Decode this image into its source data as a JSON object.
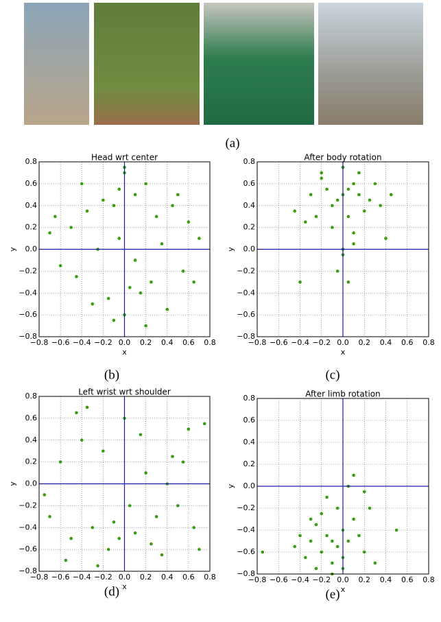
{
  "figure": {
    "captions": [
      "(a)",
      "(b)",
      "(c)",
      "(d)",
      "(e)"
    ]
  },
  "chart_data": [
    {
      "type": "scatter",
      "title": "Head wrt center",
      "x_label": "x",
      "y_label": "y",
      "color": "#3a9c10",
      "grid": true,
      "xlim": [
        -0.8,
        0.8
      ],
      "ylim": [
        -0.8,
        0.8
      ],
      "xticks": [
        {
          "value": -0.8,
          "label": "−0.8"
        },
        {
          "value": -0.6,
          "label": "−0.6"
        },
        {
          "value": -0.4,
          "label": "−0.4"
        },
        {
          "value": -0.2,
          "label": "−0.2"
        },
        {
          "value": 0,
          "label": "0.0"
        },
        0.2,
        0.4,
        0.6,
        0.8
      ],
      "yticks": [
        {
          "value": -0.8,
          "label": "−0.8"
        },
        {
          "value": -0.6,
          "label": "−0.6"
        },
        {
          "value": -0.4,
          "label": "−0.4"
        },
        {
          "value": -0.2,
          "label": "−0.2"
        },
        {
          "value": 0,
          "label": "0.0"
        },
        0.2,
        0.4,
        0.6,
        0.8
      ],
      "x": [
        -0.05,
        0.1,
        -0.2,
        0.2,
        0.0,
        -0.1,
        0.3,
        -0.35,
        0.45,
        -0.5,
        0.6,
        -0.65,
        0.05,
        -0.15,
        0.15,
        0.25,
        -0.3,
        0.4,
        -0.45,
        0.55,
        0.0,
        -0.05,
        0.1,
        -0.25,
        0.35,
        -0.6,
        0.7,
        -0.7,
        0.65,
        -0.4,
        0.5,
        0.2,
        -0.1,
        0.0
      ],
      "values": [
        0.55,
        0.5,
        0.45,
        0.6,
        0.7,
        0.4,
        0.3,
        0.35,
        0.4,
        0.2,
        0.25,
        0.3,
        -0.35,
        -0.45,
        -0.4,
        -0.3,
        -0.5,
        -0.55,
        -0.25,
        -0.2,
        -0.6,
        0.1,
        -0.1,
        0.0,
        0.05,
        -0.15,
        0.1,
        0.15,
        -0.3,
        0.6,
        0.5,
        -0.7,
        -0.65,
        0.75
      ]
    },
    {
      "type": "scatter",
      "title": "After body rotation",
      "x_label": "x",
      "y_label": "y",
      "color": "#3a9c10",
      "grid": true,
      "xlim": [
        -0.8,
        0.8
      ],
      "ylim": [
        -0.8,
        0.8
      ],
      "xticks": [
        {
          "value": -0.8,
          "label": "−0.8"
        },
        {
          "value": -0.6,
          "label": "−0.6"
        },
        {
          "value": -0.4,
          "label": "−0.4"
        },
        {
          "value": -0.2,
          "label": "−0.2"
        },
        {
          "value": 0,
          "label": "0.0"
        },
        0.2,
        0.4,
        0.6,
        0.8
      ],
      "yticks": [
        {
          "value": -0.8,
          "label": "−0.8"
        },
        {
          "value": -0.6,
          "label": "−0.6"
        },
        {
          "value": -0.4,
          "label": "−0.4"
        },
        {
          "value": -0.2,
          "label": "−0.2"
        },
        {
          "value": 0,
          "label": "0.0"
        },
        0.2,
        0.4,
        0.6,
        0.8
      ],
      "x": [
        0.0,
        0.05,
        -0.05,
        0.1,
        -0.1,
        0.15,
        -0.15,
        0.2,
        -0.2,
        0.25,
        -0.25,
        0.3,
        -0.3,
        0.0,
        0.05,
        -0.1,
        0.1,
        0.35,
        -0.35,
        0.45,
        -0.45,
        0.0,
        -0.05,
        0.05,
        -0.4,
        0.4,
        0.15,
        -0.2,
        0.0,
        0.1
      ],
      "values": [
        0.5,
        0.55,
        0.45,
        0.6,
        0.4,
        0.5,
        0.55,
        0.35,
        0.65,
        0.45,
        0.3,
        0.6,
        0.5,
        0.75,
        0.3,
        0.2,
        0.15,
        0.4,
        0.25,
        0.5,
        0.35,
        -0.05,
        -0.2,
        -0.3,
        -0.3,
        0.1,
        0.7,
        0.7,
        0.0,
        0.05
      ]
    },
    {
      "type": "scatter",
      "title": "Left wrist wrt shoulder",
      "x_label": "x",
      "y_label": "y",
      "color": "#3a9c10",
      "grid": true,
      "xlim": [
        -0.8,
        0.8
      ],
      "ylim": [
        -0.8,
        0.8
      ],
      "xticks": [
        {
          "value": -0.8,
          "label": "−0.8"
        },
        {
          "value": -0.6,
          "label": "−0.6"
        },
        {
          "value": -0.4,
          "label": "−0.4"
        },
        {
          "value": -0.2,
          "label": "−0.2"
        },
        {
          "value": 0,
          "label": "0.0"
        },
        0.2,
        0.4,
        0.6,
        0.8
      ],
      "yticks": [
        {
          "value": -0.8,
          "label": "−0.8"
        },
        {
          "value": -0.6,
          "label": "−0.6"
        },
        {
          "value": -0.4,
          "label": "−0.4"
        },
        {
          "value": -0.2,
          "label": "−0.2"
        },
        {
          "value": 0,
          "label": "0.0"
        },
        0.2,
        0.4,
        0.6,
        0.8
      ],
      "x": [
        -0.7,
        -0.5,
        -0.3,
        -0.1,
        0.1,
        0.3,
        0.5,
        0.7,
        -0.6,
        -0.4,
        -0.2,
        0.0,
        0.2,
        0.4,
        0.6,
        -0.75,
        -0.55,
        -0.35,
        -0.15,
        0.05,
        0.25,
        0.45,
        0.65,
        0.75,
        -0.25,
        0.15,
        -0.05,
        0.35,
        -0.45,
        0.55
      ],
      "values": [
        -0.3,
        -0.5,
        -0.4,
        -0.35,
        -0.45,
        -0.3,
        -0.2,
        -0.6,
        0.2,
        0.4,
        0.3,
        0.6,
        0.1,
        0.0,
        0.5,
        -0.1,
        -0.7,
        0.7,
        -0.6,
        -0.2,
        -0.55,
        0.25,
        -0.4,
        0.55,
        -0.75,
        0.45,
        -0.5,
        -0.65,
        0.65,
        0.2
      ]
    },
    {
      "type": "scatter",
      "title": "After limb rotation",
      "x_label": "x",
      "y_label": "y",
      "color": "#3a9c10",
      "grid": true,
      "xlim": [
        -0.8,
        0.8
      ],
      "ylim": [
        -0.8,
        0.8
      ],
      "xticks": [
        {
          "value": -0.8,
          "label": "−0.8"
        },
        {
          "value": -0.6,
          "label": "−0.6"
        },
        {
          "value": -0.4,
          "label": "−0.4"
        },
        {
          "value": -0.2,
          "label": "−0.2"
        },
        {
          "value": 0,
          "label": "0.0"
        },
        0.2,
        0.4,
        0.6,
        0.8
      ],
      "yticks": [
        {
          "value": -0.8,
          "label": "−0.8"
        },
        {
          "value": -0.6,
          "label": "−0.6"
        },
        {
          "value": -0.4,
          "label": "−0.4"
        },
        {
          "value": -0.2,
          "label": "−0.2"
        },
        {
          "value": 0,
          "label": "0.0"
        },
        0.2,
        0.4,
        0.6,
        0.8
      ],
      "x": [
        -0.1,
        -0.15,
        -0.05,
        0.0,
        -0.2,
        -0.25,
        0.05,
        0.1,
        -0.3,
        0.15,
        -0.35,
        0.2,
        -0.1,
        -0.2,
        0.0,
        -0.4,
        0.25,
        -0.15,
        0.05,
        -0.05,
        -0.45,
        0.3,
        0.5,
        -0.75,
        -0.1,
        0.1,
        -0.3,
        0.2,
        -0.25,
        0.0
      ],
      "values": [
        -0.5,
        -0.45,
        -0.55,
        -0.4,
        -0.6,
        -0.35,
        -0.5,
        -0.3,
        -0.5,
        -0.45,
        -0.65,
        -0.6,
        -0.7,
        -0.25,
        -0.75,
        -0.45,
        -0.2,
        -0.1,
        0.0,
        -0.2,
        -0.55,
        -0.7,
        -0.4,
        -0.6,
        -0.8,
        0.1,
        -0.3,
        -0.05,
        -0.75,
        -0.65
      ]
    }
  ]
}
